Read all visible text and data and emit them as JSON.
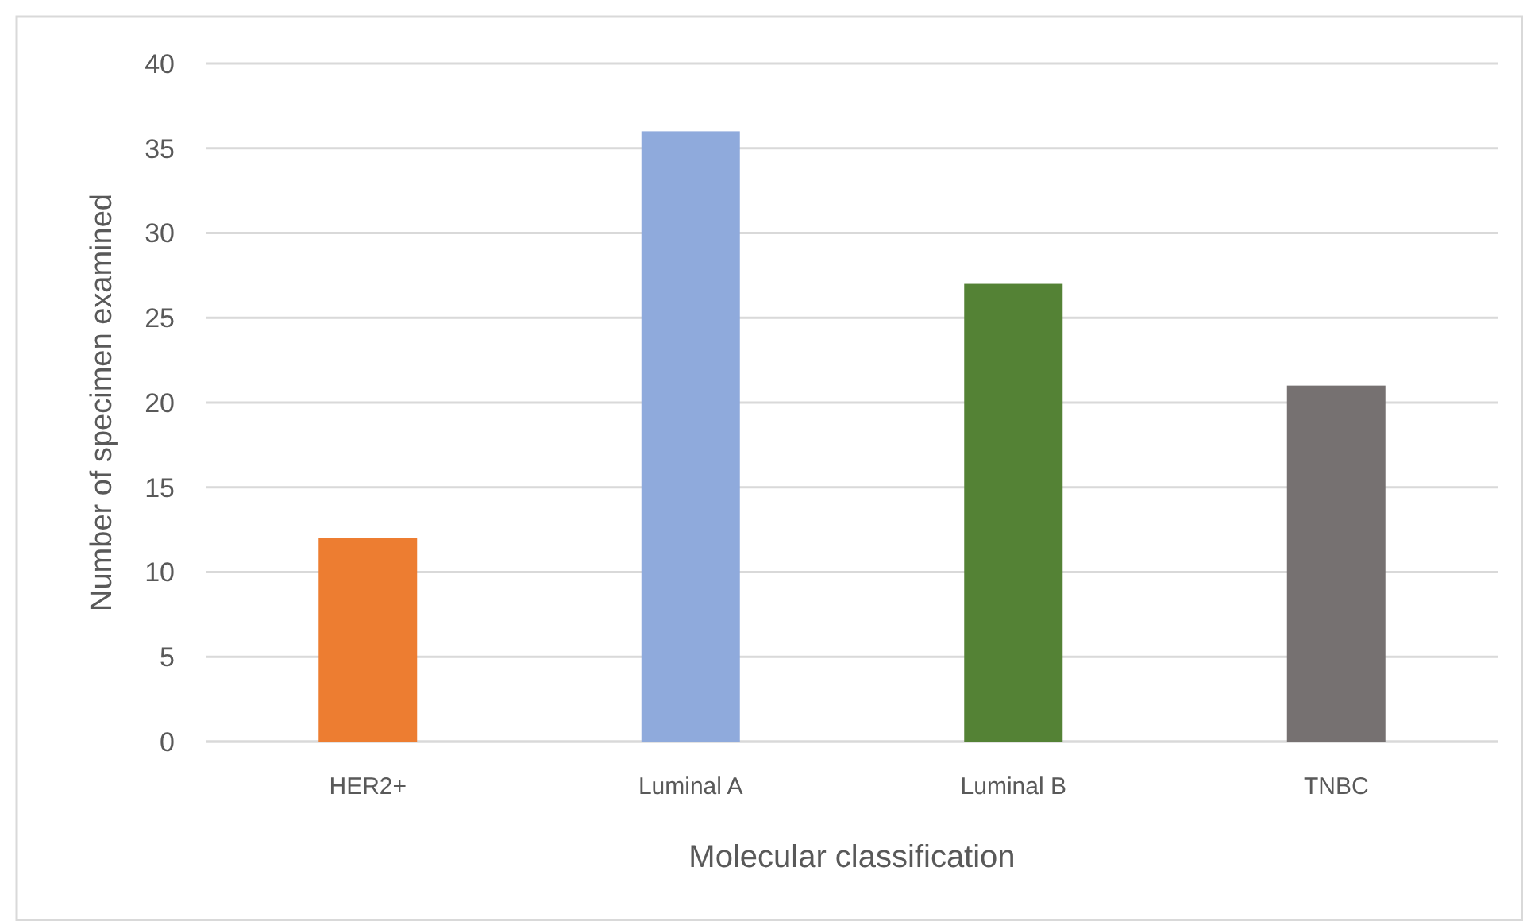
{
  "chart_data": {
    "type": "bar",
    "xlabel": "Molecular classification",
    "ylabel": "Number of specimen examined",
    "categories": [
      "HER2+",
      "Luminal A",
      "Luminal B",
      "TNBC"
    ],
    "values": [
      12,
      36,
      27,
      21
    ],
    "colors": [
      "#ed7d31",
      "#8faadc",
      "#548235",
      "#767171"
    ],
    "ylim": [
      0,
      40
    ],
    "yticks": [
      0,
      5,
      10,
      15,
      20,
      25,
      30,
      35,
      40
    ],
    "grid": "y"
  }
}
